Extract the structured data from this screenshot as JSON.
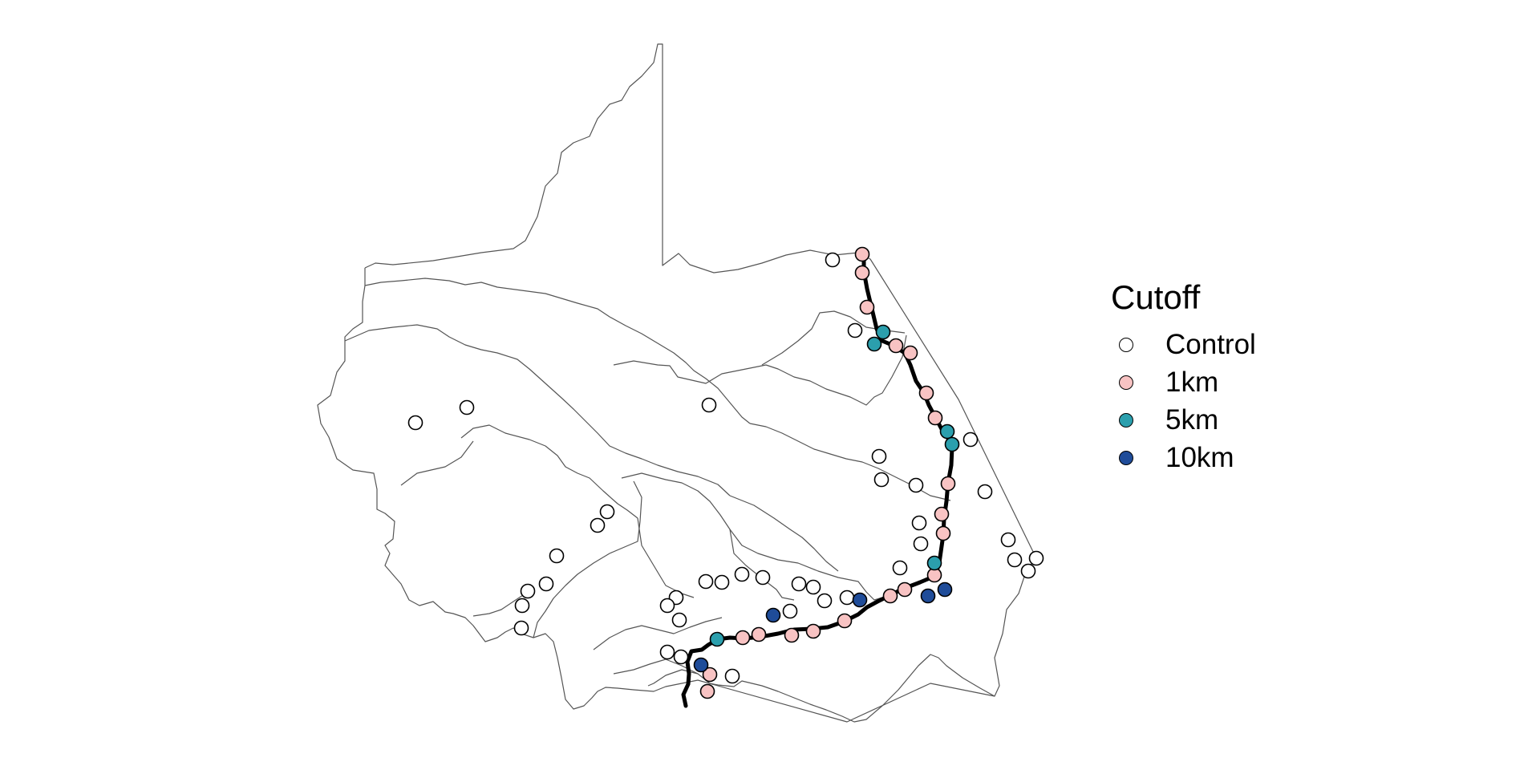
{
  "legend": {
    "title": "Cutoff",
    "items": [
      {
        "label": "Control",
        "color": "#ffffff"
      },
      {
        "label": "1km",
        "color": "#f8c3c3"
      },
      {
        "label": "5km",
        "color": "#2b9fad"
      },
      {
        "label": "10km",
        "color": "#1f4c99"
      }
    ]
  },
  "style": {
    "boundary_color": "#555555",
    "road_color": "#000000",
    "point_stroke": "#000000"
  }
}
